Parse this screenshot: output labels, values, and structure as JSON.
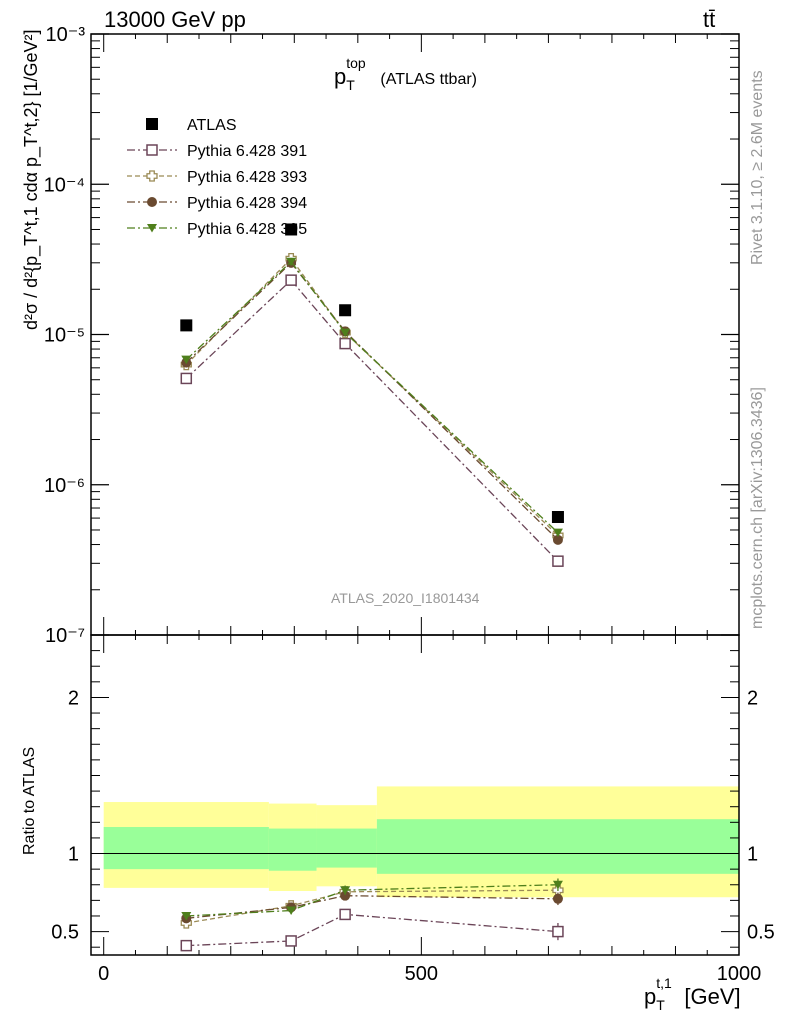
{
  "header": {
    "energy_label": "13000 GeV pp",
    "process_label": "tt̄"
  },
  "side_labels": {
    "rivet": "Rivet 3.1.10, ≥ 2.6M events",
    "source": "mcplots.cern.ch [arXiv:1306.3436]"
  },
  "chart_data": [
    {
      "type": "line",
      "panel": "main",
      "title": "p_T^top (ATLAS ttbar)",
      "title_main": "p",
      "title_sup": "top",
      "title_sub": "T",
      "title_rest": "(ATLAS ttbar)",
      "ylabel": "d²σ / d²{p_T^t,1 cdα p_T^t,2} [1/GeV²]",
      "yscale": "log",
      "ylim": [
        1e-07,
        0.001
      ],
      "yticks": [
        "10⁻⁷",
        "10⁻⁶",
        "10⁻⁵",
        "10⁻⁴",
        "10⁻³"
      ],
      "xlim": [
        -20,
        1000
      ],
      "analysis_label": "ATLAS_2020_I1801434",
      "legend_position": "top-left",
      "series": [
        {
          "name": "ATLAS",
          "color": "#000000",
          "marker": "filled-square",
          "x": [
            130,
            295,
            380,
            715
          ],
          "y": [
            1.15e-05,
            5e-05,
            1.45e-05,
            6.1e-07
          ]
        },
        {
          "name": "Pythia 6.428 391",
          "color": "#6b4558",
          "marker": "open-square",
          "dash": "dash-dot",
          "x": [
            130,
            295,
            380,
            715
          ],
          "y": [
            5.1e-06,
            2.3e-05,
            8.7e-06,
            3.1e-07
          ]
        },
        {
          "name": "Pythia 6.428 393",
          "color": "#9a8a55",
          "marker": "open-cross",
          "dash": "dashed",
          "x": [
            130,
            295,
            380,
            715
          ],
          "y": [
            6.3e-06,
            3.2e-05,
            1.03e-05,
            4.6e-07
          ]
        },
        {
          "name": "Pythia 6.428 394",
          "color": "#6a4a30",
          "marker": "filled-circle",
          "dash": "dash-dot",
          "x": [
            130,
            295,
            380,
            715
          ],
          "y": [
            6.5e-06,
            3e-05,
            1.05e-05,
            4.3e-07
          ]
        },
        {
          "name": "Pythia 6.428 395",
          "color": "#4f7f1c",
          "marker": "filled-triangle-down",
          "dash": "dash-dot",
          "x": [
            130,
            295,
            380,
            715
          ],
          "y": [
            6.8e-06,
            3.05e-05,
            1.03e-05,
            4.8e-07
          ]
        }
      ]
    },
    {
      "type": "line",
      "panel": "ratio",
      "ylabel": "Ratio to ATLAS",
      "xlabel": "p_T^t,1 [GeV]",
      "xlabel_main": "p",
      "xlabel_sup": "t,1",
      "xlabel_sub": "T",
      "xlabel_unit": "[GeV]",
      "xlim": [
        -20,
        1000
      ],
      "ylim": [
        0.35,
        2.4
      ],
      "xticks": [
        "0",
        "500",
        "1000"
      ],
      "yticks": [
        "0.5",
        "1",
        "2"
      ],
      "bin_edges": [
        0,
        260,
        335,
        430,
        1000
      ],
      "band_yellow_low": [
        0.78,
        0.76,
        0.79,
        0.72
      ],
      "band_yellow_high": [
        1.33,
        1.32,
        1.31,
        1.43
      ],
      "band_green_low": [
        0.9,
        0.89,
        0.91,
        0.87
      ],
      "band_green_high": [
        1.17,
        1.16,
        1.16,
        1.22
      ],
      "band_colors": {
        "yellow": "#ffff99",
        "green": "#99ff99"
      },
      "series": [
        {
          "name": "Pythia 6.428 391",
          "color": "#6b4558",
          "marker": "open-square",
          "dash": "dash-dot",
          "x": [
            130,
            295,
            380,
            715
          ],
          "y": [
            0.41,
            0.44,
            0.61,
            0.5
          ],
          "err": [
            0.01,
            0.01,
            0.025,
            0.055
          ]
        },
        {
          "name": "Pythia 6.428 393",
          "color": "#9a8a55",
          "marker": "open-cross",
          "dash": "dashed",
          "x": [
            130,
            295,
            380,
            715
          ],
          "y": [
            0.555,
            0.665,
            0.755,
            0.765
          ],
          "err": [
            0.015,
            0.02,
            0.03,
            0.04
          ]
        },
        {
          "name": "Pythia 6.428 394",
          "color": "#6a4a30",
          "marker": "filled-circle",
          "dash": "dash-dot",
          "x": [
            130,
            295,
            380,
            715
          ],
          "y": [
            0.585,
            0.655,
            0.73,
            0.71
          ],
          "err": [
            0.015,
            0.02,
            0.03,
            0.04
          ]
        },
        {
          "name": "Pythia 6.428 395",
          "color": "#4f7f1c",
          "marker": "filled-triangle-down",
          "dash": "dash-dot",
          "x": [
            130,
            295,
            380,
            715
          ],
          "y": [
            0.6,
            0.635,
            0.765,
            0.8
          ],
          "err": [
            0.015,
            0.02,
            0.03,
            0.04
          ]
        }
      ]
    }
  ]
}
